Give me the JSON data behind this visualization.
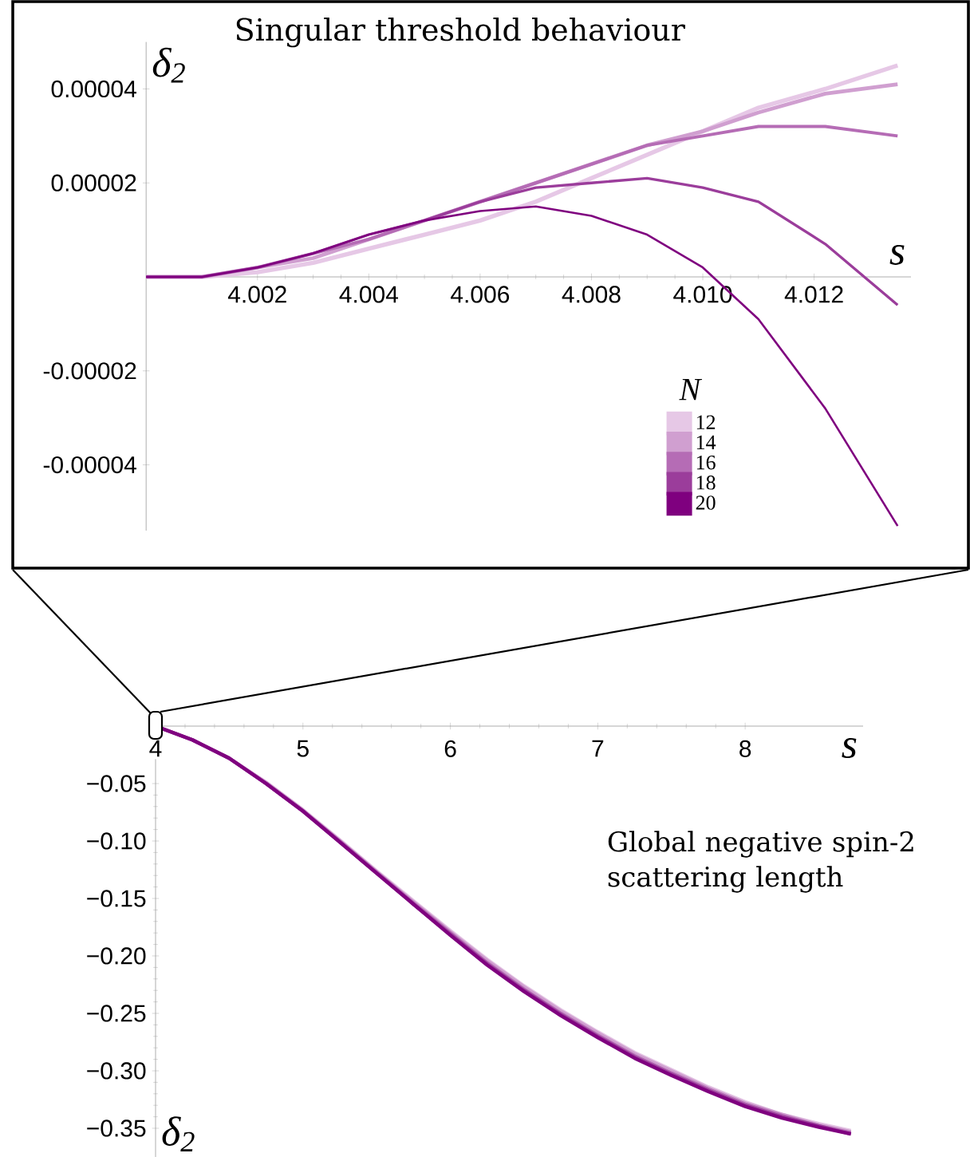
{
  "chart_data": [
    {
      "type": "line",
      "title": "Singular threshold behaviour",
      "xlabel": "s",
      "ylabel": "δ$_{2}$",
      "legend_title": "N",
      "legend": "bottom right",
      "x": [
        4.0,
        4.001,
        4.002,
        4.003,
        4.004,
        4.005,
        4.006,
        4.007,
        4.008,
        4.009,
        4.01,
        4.011,
        4.0122,
        4.0135
      ],
      "xlim": [
        4.0,
        4.01374
      ],
      "ylim": [
        -5.4e-05,
        5e-05
      ],
      "xticks": [
        {
          "value": 4.002,
          "label": "4.002"
        },
        {
          "value": 4.004,
          "label": "4.004"
        },
        {
          "value": 4.006,
          "label": "4.006"
        },
        {
          "value": 4.008,
          "label": "4.008"
        },
        {
          "value": 4.01,
          "label": "4.010"
        },
        {
          "value": 4.012,
          "label": "4.012"
        }
      ],
      "yticks": [
        {
          "value": -4e-05,
          "label": "-0.00004"
        },
        {
          "value": -2e-05,
          "label": "-0.00002"
        },
        {
          "value": 2e-05,
          "label": "0.00002"
        },
        {
          "value": 4e-05,
          "label": "0.00004"
        }
      ],
      "series": [
        {
          "name": "12",
          "color": "#e6c8e6",
          "values": [
            0,
            0,
            1e-06,
            3e-06,
            6e-06,
            9e-06,
            1.2e-05,
            1.6e-05,
            2.1e-05,
            2.6e-05,
            3.1e-05,
            3.6e-05,
            4e-05,
            4.5e-05
          ]
        },
        {
          "name": "14",
          "color": "#d09fd0",
          "values": [
            0,
            0,
            2e-06,
            4e-06,
            8e-06,
            1.2e-05,
            1.6e-05,
            2e-05,
            2.4e-05,
            2.8e-05,
            3.1e-05,
            3.5e-05,
            3.9e-05,
            4.1e-05
          ]
        },
        {
          "name": "16",
          "color": "#b56cb5",
          "values": [
            0,
            0,
            2e-06,
            5e-06,
            8e-06,
            1.2e-05,
            1.6e-05,
            2e-05,
            2.4e-05,
            2.8e-05,
            3e-05,
            3.2e-05,
            3.2e-05,
            3e-05
          ]
        },
        {
          "name": "18",
          "color": "#9b3d9b",
          "values": [
            0,
            0,
            2e-06,
            5e-06,
            9e-06,
            1.2e-05,
            1.6e-05,
            1.9e-05,
            2e-05,
            2.1e-05,
            1.9e-05,
            1.6e-05,
            7e-06,
            -6e-06
          ]
        },
        {
          "name": "20",
          "color": "#7f007f",
          "values": [
            0,
            0,
            2e-06,
            5e-06,
            9e-06,
            1.2e-05,
            1.4e-05,
            1.5e-05,
            1.3e-05,
            9e-06,
            2e-06,
            -9e-06,
            -2.8e-05,
            -5.3e-05
          ]
        }
      ]
    },
    {
      "type": "line",
      "xlabel": "s",
      "ylabel": "δ$_{2}$",
      "annotations": [
        "Global negative spin-2 scattering length"
      ],
      "x": [
        4,
        4.25,
        4.5,
        4.75,
        5,
        5.25,
        5.5,
        5.75,
        6,
        6.25,
        6.5,
        6.75,
        7,
        7.25,
        7.5,
        7.75,
        8,
        8.25,
        8.5,
        8.717
      ],
      "xlim": [
        4,
        8.8
      ],
      "ylim": [
        -0.375,
        0
      ],
      "xticks": [
        4,
        5,
        6,
        7,
        8
      ],
      "yticks": [
        {
          "value": -0.05,
          "label": "−0.05"
        },
        {
          "value": -0.1,
          "label": "−0.10"
        },
        {
          "value": -0.15,
          "label": "−0.15"
        },
        {
          "value": -0.2,
          "label": "−0.20"
        },
        {
          "value": -0.25,
          "label": "−0.25"
        },
        {
          "value": -0.3,
          "label": "−0.30"
        },
        {
          "value": -0.35,
          "label": "−0.35"
        }
      ],
      "series": [
        {
          "color": "#e6c8e6",
          "values": [
            0,
            -0.012,
            -0.028,
            -0.049,
            -0.073,
            -0.099,
            -0.126,
            -0.152,
            -0.178,
            -0.203,
            -0.226,
            -0.247,
            -0.266,
            -0.284,
            -0.299,
            -0.314,
            -0.327,
            -0.338,
            -0.346,
            -0.352
          ]
        },
        {
          "color": "#d09fd0",
          "values": [
            0,
            -0.012,
            -0.028,
            -0.049,
            -0.073,
            -0.1,
            -0.127,
            -0.153,
            -0.179,
            -0.204,
            -0.227,
            -0.248,
            -0.267,
            -0.285,
            -0.3,
            -0.315,
            -0.328,
            -0.338,
            -0.347,
            -0.353
          ]
        },
        {
          "color": "#b56cb5",
          "values": [
            0,
            -0.012,
            -0.028,
            -0.05,
            -0.074,
            -0.1,
            -0.127,
            -0.154,
            -0.18,
            -0.206,
            -0.229,
            -0.25,
            -0.269,
            -0.287,
            -0.302,
            -0.316,
            -0.329,
            -0.339,
            -0.348,
            -0.354
          ]
        },
        {
          "color": "#9b3d9b",
          "values": [
            0,
            -0.012,
            -0.028,
            -0.05,
            -0.074,
            -0.101,
            -0.128,
            -0.155,
            -0.181,
            -0.207,
            -0.23,
            -0.251,
            -0.27,
            -0.288,
            -0.303,
            -0.317,
            -0.33,
            -0.34,
            -0.348,
            -0.355
          ]
        },
        {
          "color": "#7f007f",
          "values": [
            0,
            -0.012,
            -0.028,
            -0.05,
            -0.074,
            -0.101,
            -0.128,
            -0.155,
            -0.182,
            -0.208,
            -0.231,
            -0.252,
            -0.271,
            -0.289,
            -0.304,
            -0.318,
            -0.331,
            -0.341,
            -0.349,
            -0.355
          ]
        }
      ]
    }
  ]
}
